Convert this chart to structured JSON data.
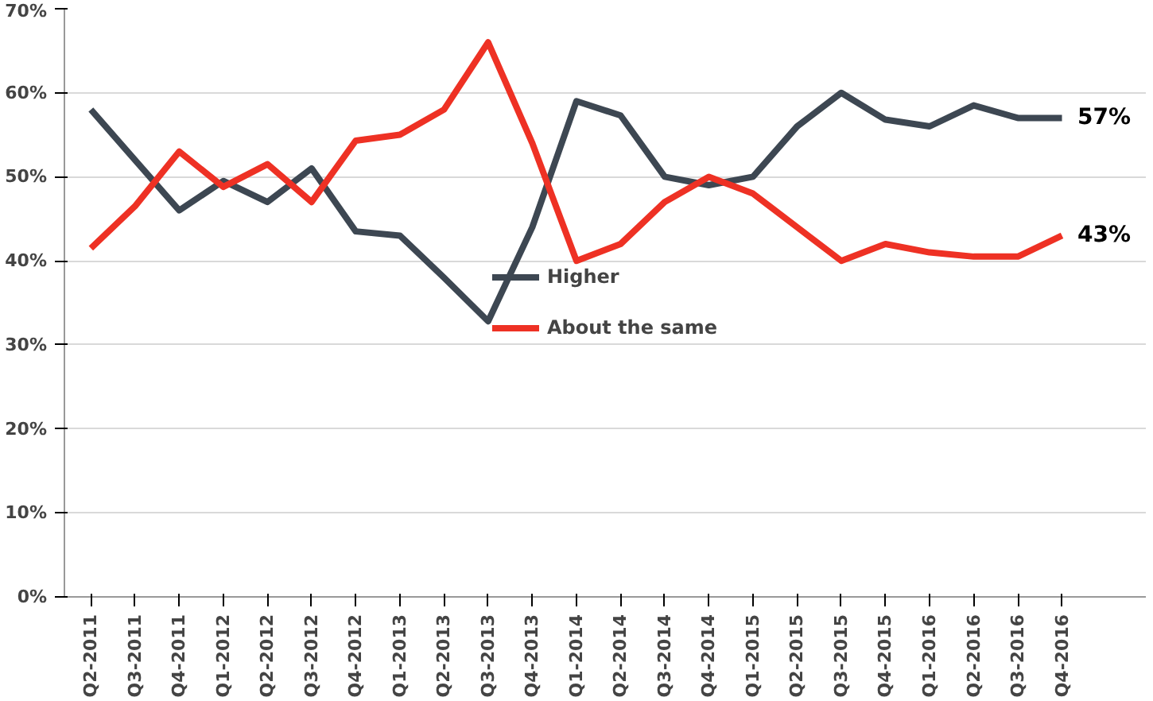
{
  "chart_data": {
    "type": "line",
    "categories": [
      "Q2-2011",
      "Q3-2011",
      "Q4-2011",
      "Q1-2012",
      "Q2-2012",
      "Q3-2012",
      "Q4-2012",
      "Q1-2013",
      "Q2-2013",
      "Q3-2013",
      "Q4-2013",
      "Q1-2014",
      "Q2-2014",
      "Q3-2014",
      "Q4-2014",
      "Q1-2015",
      "Q2-2015",
      "Q3-2015",
      "Q4-2015",
      "Q1-2016",
      "Q2-2016",
      "Q3-2016",
      "Q4-2016"
    ],
    "series": [
      {
        "name": "Higher",
        "color": "#3d4752",
        "values": [
          58,
          52,
          46,
          49.5,
          47,
          51,
          43.5,
          43,
          38,
          32.8,
          44,
          59,
          57.3,
          50,
          49,
          50,
          56,
          60,
          56.8,
          56,
          58.5,
          57,
          57
        ]
      },
      {
        "name": "About the same",
        "color": "#ee3124",
        "values": [
          41.5,
          46.5,
          53,
          48.8,
          51.5,
          47,
          54.3,
          55,
          58,
          66,
          54,
          40,
          42,
          47,
          50,
          48,
          44,
          40,
          42,
          41,
          40.5,
          40.5,
          43
        ]
      }
    ],
    "ylim": [
      0,
      70
    ],
    "yticks": [
      {
        "value": 0,
        "label": "0%"
      },
      {
        "value": 10,
        "label": "10%"
      },
      {
        "value": 20,
        "label": "20%"
      },
      {
        "value": 30,
        "label": "30%"
      },
      {
        "value": 40,
        "label": "40%"
      },
      {
        "value": 50,
        "label": "50%"
      },
      {
        "value": 60,
        "label": "60%"
      },
      {
        "value": 70,
        "label": "70%"
      }
    ],
    "annotations": [
      {
        "text": "57%",
        "x": "Q4-2016",
        "y": 57
      },
      {
        "text": "43%",
        "x": "Q4-2016",
        "y": 43
      }
    ],
    "grid": "y",
    "legend": "center",
    "marker": "none",
    "line_style": "solid"
  }
}
